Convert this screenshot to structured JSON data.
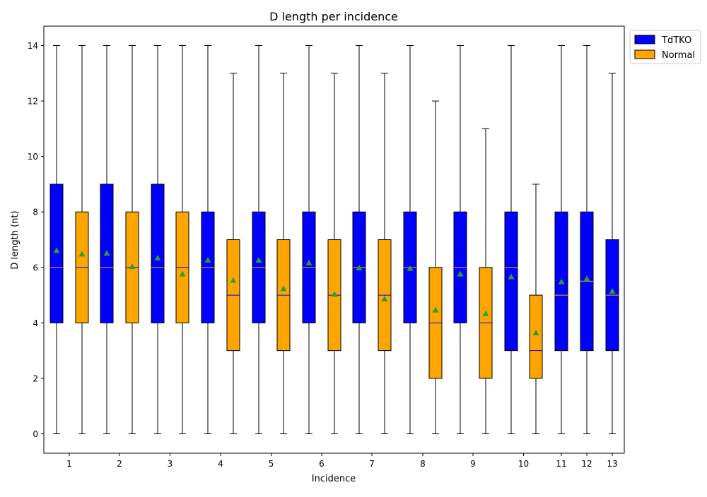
{
  "chart_data": {
    "type": "box",
    "title": "D length per incidence",
    "xlabel": "Incidence",
    "ylabel": "D length (nt)",
    "ylim": [
      -0.7,
      14.7
    ],
    "yticks": [
      0,
      2,
      4,
      6,
      8,
      10,
      12,
      14
    ],
    "categories": [
      "1",
      "2",
      "3",
      "4",
      "5",
      "6",
      "7",
      "8",
      "9",
      "10",
      "11",
      "12",
      "13"
    ],
    "legend_position": "outside-top-right",
    "grid": false,
    "colors": {
      "TdTKO": "#0000ff",
      "Normal": "#ffa500",
      "median_on_blue": "#ffa500",
      "median_on_orange": "#0000ff",
      "mean_marker": "#2ca02c"
    },
    "series": [
      {
        "name": "TdTKO",
        "boxes": [
          {
            "category": "1",
            "min": 0,
            "q1": 4,
            "median": 6,
            "q3": 9,
            "max": 14,
            "mean": 6.6
          },
          {
            "category": "2",
            "min": 0,
            "q1": 4,
            "median": 6,
            "q3": 9,
            "max": 14,
            "mean": 6.5
          },
          {
            "category": "3",
            "min": 0,
            "q1": 4,
            "median": 6,
            "q3": 9,
            "max": 14,
            "mean": 6.33
          },
          {
            "category": "4",
            "min": 0,
            "q1": 4,
            "median": 6,
            "q3": 8,
            "max": 14,
            "mean": 6.25
          },
          {
            "category": "5",
            "min": 0,
            "q1": 4,
            "median": 6,
            "q3": 8,
            "max": 14,
            "mean": 6.25
          },
          {
            "category": "6",
            "min": 0,
            "q1": 4,
            "median": 6,
            "q3": 8,
            "max": 14,
            "mean": 6.15
          },
          {
            "category": "7",
            "min": 0,
            "q1": 4,
            "median": 6,
            "q3": 8,
            "max": 14,
            "mean": 5.97
          },
          {
            "category": "8",
            "min": 0,
            "q1": 4,
            "median": 6,
            "q3": 8,
            "max": 14,
            "mean": 5.95
          },
          {
            "category": "9",
            "min": 0,
            "q1": 4,
            "median": 6,
            "q3": 8,
            "max": 14,
            "mean": 5.75
          },
          {
            "category": "10",
            "min": 0,
            "q1": 3,
            "median": 6,
            "q3": 8,
            "max": 14,
            "mean": 5.65
          },
          {
            "category": "11",
            "min": 0,
            "q1": 3,
            "median": 5,
            "q3": 8,
            "max": 14,
            "mean": 5.47
          },
          {
            "category": "12",
            "min": 0,
            "q1": 3,
            "median": 5.5,
            "q3": 8,
            "max": 14,
            "mean": 5.58
          },
          {
            "category": "13",
            "min": 0,
            "q1": 3,
            "median": 5,
            "q3": 7,
            "max": 13,
            "mean": 5.13
          }
        ]
      },
      {
        "name": "Normal",
        "boxes": [
          {
            "category": "1",
            "min": 0,
            "q1": 4,
            "median": 6,
            "q3": 8,
            "max": 14,
            "mean": 6.47
          },
          {
            "category": "2",
            "min": 0,
            "q1": 4,
            "median": 6,
            "q3": 8,
            "max": 14,
            "mean": 6.02
          },
          {
            "category": "3",
            "min": 0,
            "q1": 4,
            "median": 6,
            "q3": 8,
            "max": 14,
            "mean": 5.75
          },
          {
            "category": "4",
            "min": 0,
            "q1": 3,
            "median": 5,
            "q3": 7,
            "max": 13,
            "mean": 5.52
          },
          {
            "category": "5",
            "min": 0,
            "q1": 3,
            "median": 5,
            "q3": 7,
            "max": 13,
            "mean": 5.22
          },
          {
            "category": "6",
            "min": 0,
            "q1": 3,
            "median": 5,
            "q3": 7,
            "max": 13,
            "mean": 5.02
          },
          {
            "category": "7",
            "min": 0,
            "q1": 3,
            "median": 5,
            "q3": 7,
            "max": 13,
            "mean": 4.85
          },
          {
            "category": "8",
            "min": 0,
            "q1": 2,
            "median": 4,
            "q3": 6,
            "max": 12,
            "mean": 4.45
          },
          {
            "category": "9",
            "min": 0,
            "q1": 2,
            "median": 4,
            "q3": 6,
            "max": 11,
            "mean": 4.32
          },
          {
            "category": "10",
            "min": 0,
            "q1": 2,
            "median": 3,
            "q3": 5,
            "max": 9,
            "mean": 3.63
          }
        ]
      }
    ]
  }
}
